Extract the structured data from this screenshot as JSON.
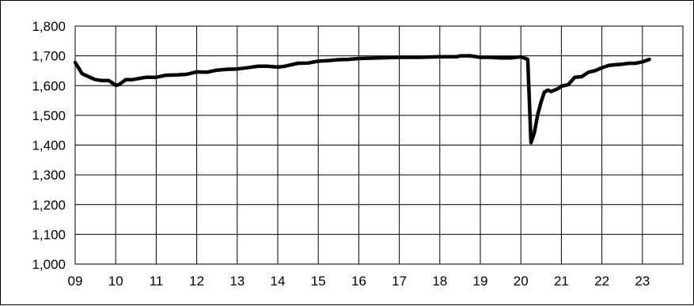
{
  "chart_data": {
    "type": "line",
    "title": "",
    "xlabel": "",
    "ylabel": "",
    "x_tick_labels": [
      "09",
      "10",
      "11",
      "12",
      "13",
      "14",
      "15",
      "16",
      "17",
      "18",
      "19",
      "20",
      "21",
      "22",
      "23"
    ],
    "y_tick_labels": [
      "1,000",
      "1,100",
      "1,200",
      "1,300",
      "1,400",
      "1,500",
      "1,600",
      "1,700",
      "1,800"
    ],
    "xlim": [
      2009,
      2024
    ],
    "ylim": [
      1000,
      1800
    ],
    "grid": true,
    "legend": "none",
    "line_color": "#000000",
    "series": [
      {
        "x": [
          2009.0,
          2009.17,
          2009.33,
          2009.5,
          2009.67,
          2009.83,
          2010.0,
          2010.08,
          2010.25,
          2010.42,
          2010.58,
          2010.75,
          2011.0,
          2011.25,
          2011.5,
          2011.75,
          2012.0,
          2012.25,
          2012.5,
          2012.75,
          2013.0,
          2013.25,
          2013.5,
          2013.75,
          2014.0,
          2014.17,
          2014.33,
          2014.5,
          2014.75,
          2015.0,
          2015.25,
          2015.5,
          2015.75,
          2016.0,
          2016.25,
          2016.5,
          2016.75,
          2017.0,
          2017.5,
          2018.0,
          2018.42,
          2018.5,
          2018.75,
          2019.0,
          2019.25,
          2019.5,
          2019.75,
          2020.0,
          2020.17,
          2020.25,
          2020.33,
          2020.42,
          2020.5,
          2020.58,
          2020.67,
          2020.75,
          2020.92,
          2021.0,
          2021.17,
          2021.33,
          2021.5,
          2021.67,
          2021.83,
          2022.0,
          2022.17,
          2022.33,
          2022.5,
          2022.67,
          2022.83,
          2023.0,
          2023.17
        ],
        "y": [
          1678,
          1640,
          1630,
          1620,
          1617,
          1617,
          1601,
          1603,
          1620,
          1620,
          1624,
          1628,
          1628,
          1635,
          1636,
          1638,
          1646,
          1645,
          1652,
          1655,
          1656,
          1660,
          1665,
          1665,
          1662,
          1665,
          1670,
          1675,
          1676,
          1682,
          1684,
          1687,
          1688,
          1691,
          1692,
          1693,
          1694,
          1695,
          1695,
          1697,
          1697,
          1700,
          1700,
          1695,
          1695,
          1693,
          1693,
          1697,
          1688,
          1408,
          1440,
          1505,
          1545,
          1578,
          1585,
          1580,
          1590,
          1598,
          1603,
          1628,
          1630,
          1645,
          1650,
          1660,
          1668,
          1670,
          1672,
          1675,
          1675,
          1680,
          1688
        ]
      }
    ]
  }
}
